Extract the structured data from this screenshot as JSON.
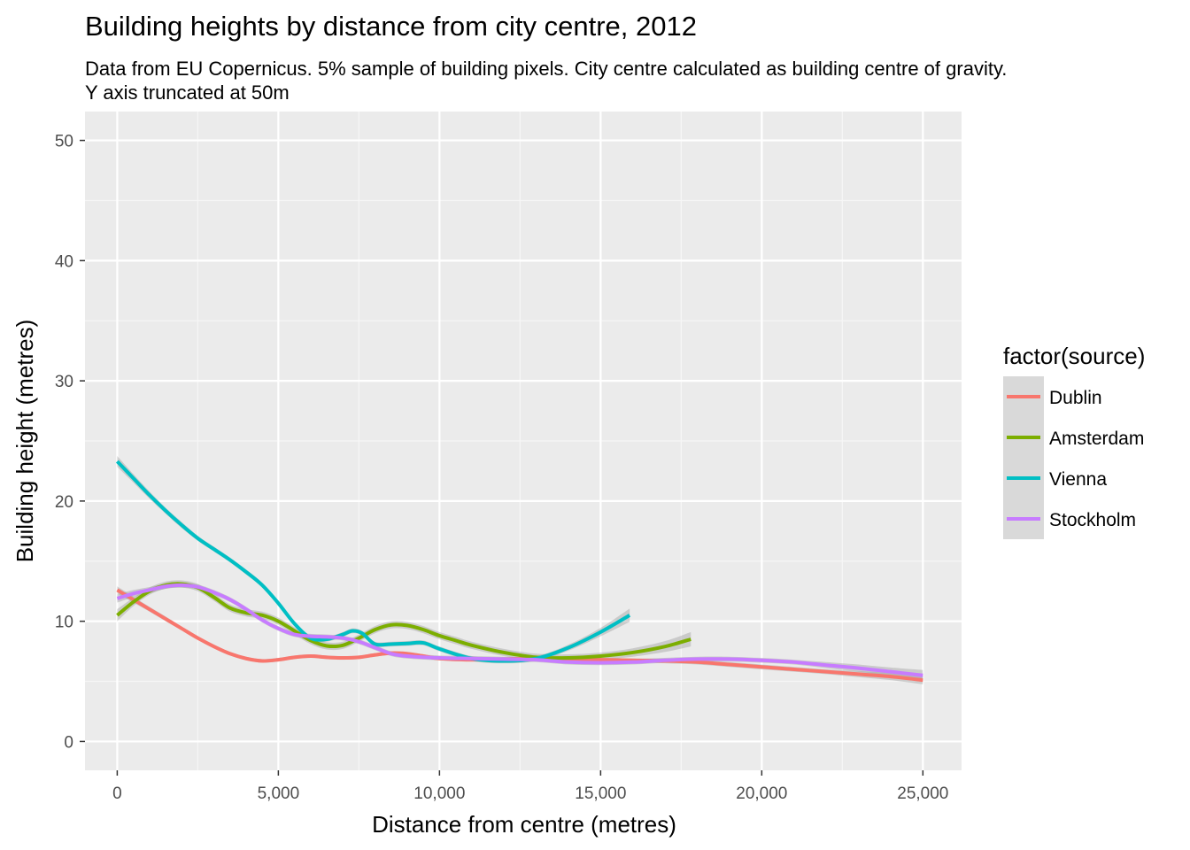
{
  "chart_data": {
    "type": "line",
    "title": "Building heights by distance from city centre, 2012",
    "subtitle_lines": [
      "Data from EU Copernicus. 5% sample of building pixels. City centre calculated as building centre of gravity.",
      "Y axis truncated at 50m"
    ],
    "xlabel": "Distance from centre (metres)",
    "ylabel": "Building height (metres)",
    "xlim": [
      -1000,
      26200
    ],
    "ylim": [
      -2.4,
      52.4
    ],
    "x_ticks": [
      0,
      5000,
      10000,
      15000,
      20000,
      25000
    ],
    "x_tick_labels": [
      "0",
      "5,000",
      "10,000",
      "15,000",
      "20,000",
      "25,000"
    ],
    "y_ticks": [
      0,
      10,
      20,
      30,
      40,
      50
    ],
    "y_tick_labels": [
      "0",
      "10",
      "20",
      "30",
      "40",
      "50"
    ],
    "grid": true,
    "legend": {
      "title": "factor(source)",
      "position": "right"
    },
    "series": [
      {
        "name": "Dublin",
        "color": "#F8766D",
        "x": [
          0,
          500,
          1000,
          1500,
          2000,
          2500,
          3000,
          3500,
          4000,
          4500,
          5000,
          5500,
          6000,
          6500,
          7000,
          7500,
          8000,
          8500,
          9000,
          9500,
          10000,
          11000,
          12000,
          13000,
          14000,
          15000,
          16000,
          17000,
          18000,
          19000,
          20000,
          21000,
          22000,
          23000,
          24000,
          25000
        ],
        "y": [
          12.6,
          11.8,
          11.0,
          10.2,
          9.4,
          8.6,
          7.9,
          7.3,
          6.9,
          6.7,
          6.8,
          7.0,
          7.1,
          7.0,
          6.95,
          7.0,
          7.2,
          7.35,
          7.3,
          7.1,
          6.9,
          6.8,
          6.85,
          6.9,
          6.85,
          6.8,
          6.75,
          6.7,
          6.6,
          6.4,
          6.2,
          6.0,
          5.8,
          5.6,
          5.4,
          5.1
        ],
        "band": [
          0.3,
          0.25,
          0.2,
          0.2,
          0.15,
          0.15,
          0.15,
          0.15,
          0.15,
          0.15,
          0.15,
          0.15,
          0.15,
          0.15,
          0.15,
          0.15,
          0.15,
          0.15,
          0.15,
          0.15,
          0.15,
          0.15,
          0.15,
          0.15,
          0.15,
          0.15,
          0.15,
          0.2,
          0.2,
          0.2,
          0.2,
          0.2,
          0.2,
          0.25,
          0.3,
          0.35
        ]
      },
      {
        "name": "Amsterdam",
        "color": "#7CAE00",
        "x": [
          0,
          500,
          1000,
          1500,
          2000,
          2500,
          3000,
          3500,
          4000,
          4500,
          5000,
          5500,
          6000,
          6500,
          7000,
          7500,
          8000,
          8500,
          9000,
          9500,
          10000,
          10500,
          11000,
          12000,
          13000,
          14000,
          15000,
          16000,
          17000,
          17800
        ],
        "y": [
          10.5,
          11.6,
          12.5,
          13.0,
          13.1,
          12.8,
          12.0,
          11.1,
          10.7,
          10.5,
          10.0,
          9.2,
          8.4,
          7.95,
          8.0,
          8.6,
          9.3,
          9.7,
          9.65,
          9.3,
          8.8,
          8.4,
          8.0,
          7.4,
          7.0,
          6.95,
          7.1,
          7.4,
          7.9,
          8.5
        ],
        "band": [
          0.5,
          0.35,
          0.3,
          0.3,
          0.3,
          0.3,
          0.3,
          0.3,
          0.3,
          0.3,
          0.3,
          0.3,
          0.3,
          0.3,
          0.3,
          0.3,
          0.3,
          0.3,
          0.3,
          0.3,
          0.3,
          0.3,
          0.3,
          0.3,
          0.3,
          0.3,
          0.3,
          0.35,
          0.45,
          0.6
        ]
      },
      {
        "name": "Vienna",
        "color": "#00BFC4",
        "x": [
          0,
          500,
          1000,
          1500,
          2000,
          2500,
          3000,
          3500,
          4000,
          4500,
          5000,
          5500,
          6000,
          6500,
          7000,
          7300,
          7600,
          8000,
          8500,
          9000,
          9500,
          10000,
          11000,
          12000,
          13000,
          14000,
          15000,
          15900
        ],
        "y": [
          23.3,
          21.9,
          20.5,
          19.2,
          18.0,
          16.9,
          16.0,
          15.1,
          14.1,
          13.0,
          11.5,
          9.8,
          8.6,
          8.5,
          8.9,
          9.2,
          9.0,
          8.1,
          8.1,
          8.15,
          8.2,
          7.7,
          6.9,
          6.7,
          6.9,
          7.8,
          9.1,
          10.5
        ],
        "band": [
          0.45,
          0.35,
          0.3,
          0.25,
          0.25,
          0.2,
          0.2,
          0.2,
          0.2,
          0.2,
          0.2,
          0.2,
          0.2,
          0.2,
          0.2,
          0.2,
          0.2,
          0.2,
          0.2,
          0.2,
          0.2,
          0.2,
          0.2,
          0.2,
          0.2,
          0.25,
          0.35,
          0.55
        ]
      },
      {
        "name": "Stockholm",
        "color": "#C77CFF",
        "x": [
          0,
          500,
          1000,
          1500,
          2000,
          2500,
          3000,
          3500,
          4000,
          4500,
          5000,
          5500,
          6000,
          6500,
          7000,
          7500,
          8000,
          8500,
          9000,
          10000,
          11000,
          12000,
          13000,
          14000,
          15000,
          16000,
          17000,
          18000,
          19000,
          20000,
          21000,
          22000,
          23000,
          24000,
          25000
        ],
        "y": [
          11.9,
          12.3,
          12.6,
          12.9,
          13.0,
          12.85,
          12.4,
          11.8,
          11.0,
          10.1,
          9.4,
          8.9,
          8.75,
          8.7,
          8.6,
          8.3,
          7.8,
          7.3,
          7.1,
          6.95,
          6.9,
          6.85,
          6.8,
          6.6,
          6.55,
          6.6,
          6.75,
          6.85,
          6.85,
          6.75,
          6.6,
          6.35,
          6.1,
          5.8,
          5.5
        ],
        "band": [
          0.35,
          0.3,
          0.25,
          0.2,
          0.2,
          0.2,
          0.2,
          0.2,
          0.2,
          0.2,
          0.2,
          0.2,
          0.2,
          0.2,
          0.2,
          0.2,
          0.2,
          0.2,
          0.2,
          0.2,
          0.2,
          0.2,
          0.2,
          0.2,
          0.2,
          0.2,
          0.2,
          0.2,
          0.2,
          0.2,
          0.2,
          0.25,
          0.3,
          0.35,
          0.45
        ]
      }
    ]
  }
}
